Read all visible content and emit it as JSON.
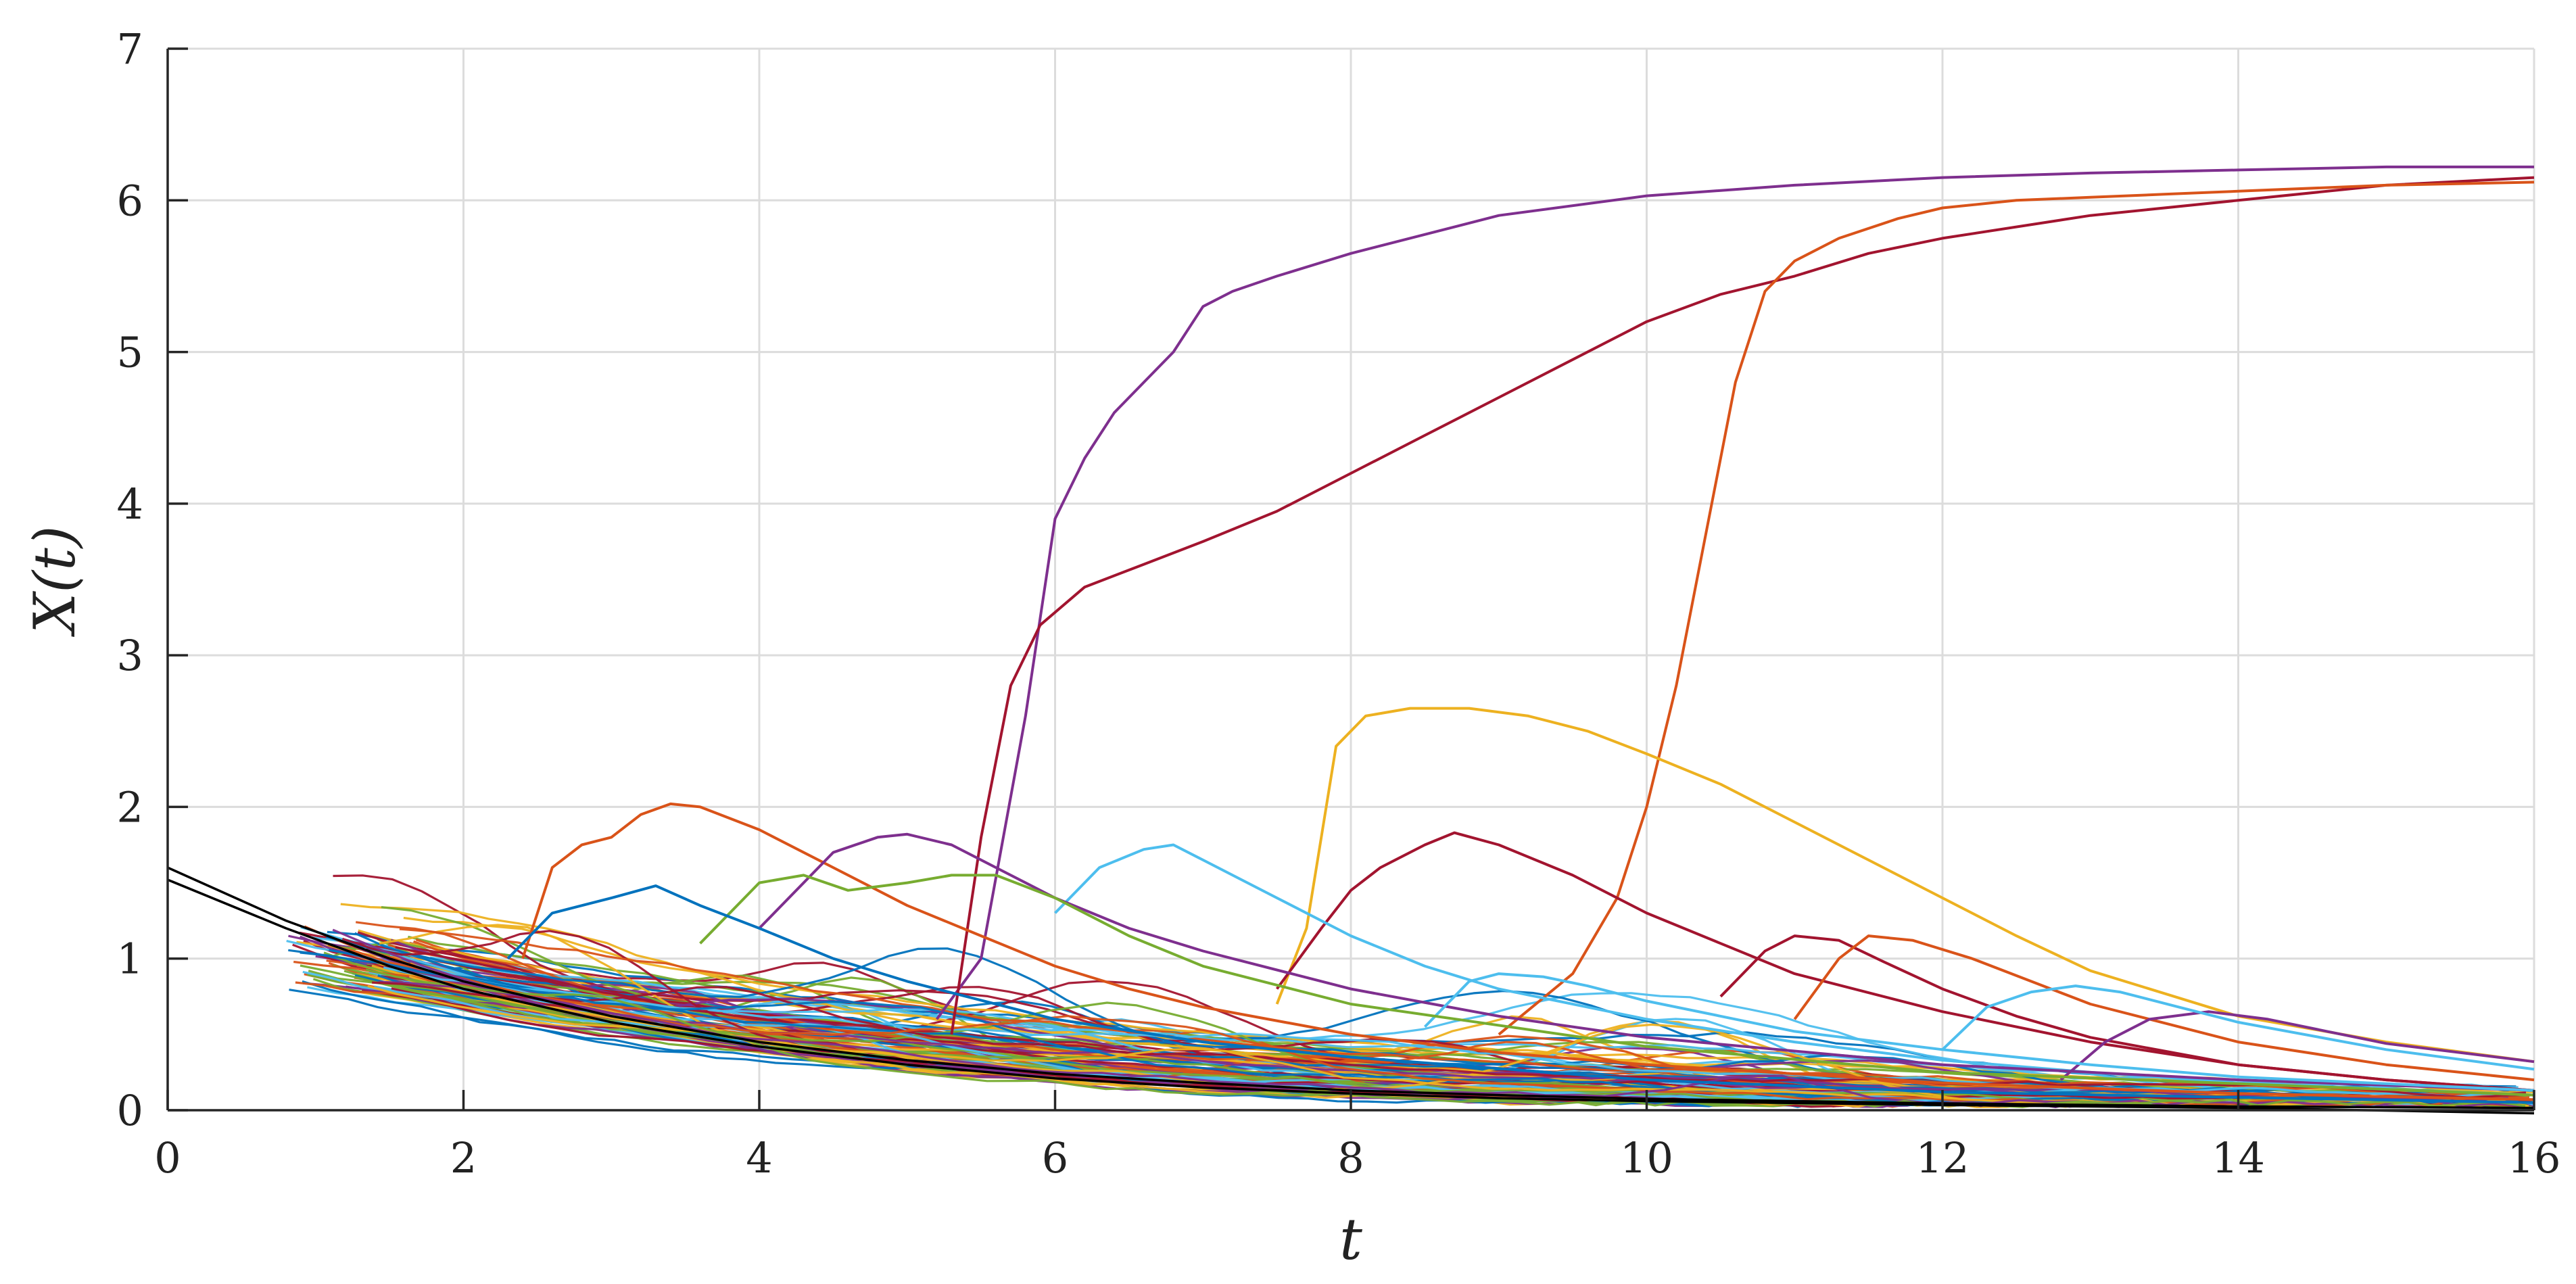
{
  "chart_data": {
    "type": "line",
    "title": "",
    "xlabel": "t",
    "ylabel": "X(t)",
    "xlim": [
      0,
      16
    ],
    "ylim": [
      0,
      7
    ],
    "xticks": [
      0,
      2,
      4,
      6,
      8,
      10,
      12,
      14,
      16
    ],
    "yticks": [
      0,
      1,
      2,
      3,
      4,
      5,
      6,
      7
    ],
    "grid": true,
    "legend": "none",
    "palette": [
      "#0072BD",
      "#D95319",
      "#EDB120",
      "#7E2F8E",
      "#77AC30",
      "#4DBEEE",
      "#A2142F"
    ],
    "envelope_color": "#000000",
    "envelope": [
      {
        "x": [
          0,
          0.8,
          1.5,
          2,
          3,
          4,
          5,
          6,
          7,
          8,
          9,
          10,
          12,
          14,
          16
        ],
        "y": [
          1.6,
          1.25,
          1.0,
          0.85,
          0.62,
          0.45,
          0.33,
          0.24,
          0.18,
          0.13,
          0.1,
          0.075,
          0.045,
          0.025,
          0.015
        ]
      },
      {
        "x": [
          0,
          0.8,
          1.5,
          2,
          3,
          4,
          5,
          6,
          7,
          8,
          9,
          10,
          12,
          14,
          16
        ],
        "y": [
          1.52,
          1.2,
          0.95,
          0.8,
          0.58,
          0.42,
          0.3,
          0.21,
          0.15,
          0.11,
          0.08,
          0.06,
          0.035,
          0.015,
          -0.02
        ]
      }
    ],
    "highlighted_series": [
      {
        "color": "#7E2F8E",
        "x": [
          5.2,
          5.5,
          5.8,
          6.0,
          6.2,
          6.4,
          6.6,
          6.8,
          7.0,
          7.2,
          7.5,
          8,
          9,
          10,
          11,
          12,
          13,
          14,
          15,
          16
        ],
        "y": [
          0.6,
          1.0,
          2.6,
          3.9,
          4.3,
          4.6,
          4.8,
          5.0,
          5.3,
          5.4,
          5.5,
          5.65,
          5.9,
          6.03,
          6.1,
          6.15,
          6.18,
          6.2,
          6.22,
          6.22
        ]
      },
      {
        "color": "#A2142F",
        "x": [
          5.3,
          5.5,
          5.7,
          5.9,
          6.2,
          6.6,
          7.0,
          7.5,
          8.0,
          8.5,
          9.0,
          9.5,
          10,
          10.5,
          11,
          11.5,
          12,
          13,
          14,
          15,
          16
        ],
        "y": [
          0.5,
          1.8,
          2.8,
          3.2,
          3.45,
          3.6,
          3.75,
          3.95,
          4.2,
          4.45,
          4.7,
          4.95,
          5.2,
          5.38,
          5.5,
          5.65,
          5.75,
          5.9,
          6.0,
          6.1,
          6.15
        ]
      },
      {
        "color": "#D95319",
        "x": [
          9.0,
          9.5,
          9.8,
          10.0,
          10.2,
          10.4,
          10.6,
          10.8,
          11.0,
          11.3,
          11.7,
          12,
          12.5,
          13,
          13.5,
          14,
          15,
          16
        ],
        "y": [
          0.5,
          0.9,
          1.4,
          2.0,
          2.8,
          3.8,
          4.8,
          5.4,
          5.6,
          5.75,
          5.88,
          5.95,
          6.0,
          6.02,
          6.04,
          6.06,
          6.1,
          6.12
        ]
      },
      {
        "color": "#EDB120",
        "x": [
          7.5,
          7.7,
          7.9,
          8.1,
          8.4,
          8.8,
          9.2,
          9.6,
          10,
          10.5,
          11,
          11.5,
          12,
          12.5,
          13,
          14,
          15,
          16
        ],
        "y": [
          0.7,
          1.2,
          2.4,
          2.6,
          2.65,
          2.65,
          2.6,
          2.5,
          2.35,
          2.15,
          1.9,
          1.65,
          1.4,
          1.15,
          0.92,
          0.62,
          0.45,
          0.32
        ]
      },
      {
        "color": "#A2142F",
        "x": [
          7.5,
          7.8,
          8.0,
          8.2,
          8.5,
          8.7,
          9.0,
          9.5,
          10,
          10.5,
          11,
          12,
          13,
          14,
          15,
          16
        ],
        "y": [
          0.8,
          1.2,
          1.45,
          1.6,
          1.75,
          1.83,
          1.75,
          1.55,
          1.3,
          1.1,
          0.9,
          0.65,
          0.45,
          0.3,
          0.2,
          0.13
        ]
      },
      {
        "color": "#D95319",
        "x": [
          2.4,
          2.6,
          2.8,
          3.0,
          3.2,
          3.4,
          3.6,
          4.0,
          4.5,
          5.0,
          5.5,
          6.0,
          6.5,
          7.0,
          8.0,
          9.0,
          10,
          12,
          14,
          16
        ],
        "y": [
          1.0,
          1.6,
          1.75,
          1.8,
          1.95,
          2.02,
          2.0,
          1.85,
          1.6,
          1.35,
          1.15,
          0.95,
          0.8,
          0.68,
          0.5,
          0.38,
          0.3,
          0.18,
          0.11,
          0.07
        ]
      },
      {
        "color": "#4DBEEE",
        "x": [
          6.0,
          6.3,
          6.6,
          6.8,
          7.0,
          7.5,
          8.0,
          8.5,
          9.0,
          10,
          11,
          12,
          13,
          14,
          16
        ],
        "y": [
          1.3,
          1.6,
          1.72,
          1.75,
          1.65,
          1.4,
          1.15,
          0.95,
          0.8,
          0.6,
          0.45,
          0.33,
          0.25,
          0.18,
          0.1
        ]
      },
      {
        "color": "#7E2F8E",
        "x": [
          4.0,
          4.5,
          4.8,
          5.0,
          5.3,
          5.6,
          6.0,
          6.5,
          7.0,
          8,
          9,
          10,
          12,
          14,
          16
        ],
        "y": [
          1.2,
          1.7,
          1.8,
          1.82,
          1.75,
          1.6,
          1.4,
          1.2,
          1.05,
          0.8,
          0.62,
          0.48,
          0.3,
          0.2,
          0.13
        ]
      },
      {
        "color": "#A2142F",
        "x": [
          10.5,
          10.8,
          11.0,
          11.3,
          11.6,
          12,
          12.5,
          13,
          14,
          15,
          16
        ],
        "y": [
          0.75,
          1.05,
          1.15,
          1.12,
          0.98,
          0.8,
          0.62,
          0.48,
          0.3,
          0.2,
          0.13
        ]
      },
      {
        "color": "#D95319",
        "x": [
          11.0,
          11.3,
          11.5,
          11.8,
          12.2,
          12.6,
          13,
          14,
          15,
          16
        ],
        "y": [
          0.6,
          1.0,
          1.15,
          1.12,
          1.0,
          0.85,
          0.7,
          0.45,
          0.3,
          0.2
        ]
      },
      {
        "color": "#7E2F8E",
        "x": [
          12.8,
          13.1,
          13.4,
          13.8,
          14.2,
          14.6,
          15,
          15.5,
          16
        ],
        "y": [
          0.2,
          0.45,
          0.6,
          0.65,
          0.6,
          0.52,
          0.44,
          0.38,
          0.32
        ]
      },
      {
        "color": "#4DBEEE",
        "x": [
          8.5,
          8.8,
          9.0,
          9.3,
          9.6,
          10,
          10.5,
          11,
          12,
          13,
          14,
          16
        ],
        "y": [
          0.55,
          0.85,
          0.9,
          0.88,
          0.82,
          0.72,
          0.62,
          0.52,
          0.4,
          0.3,
          0.22,
          0.13
        ]
      },
      {
        "color": "#77AC30",
        "x": [
          3.6,
          4.0,
          4.3,
          4.6,
          5.0,
          5.3,
          5.6,
          6.0,
          6.5,
          7.0,
          8,
          10,
          12,
          16
        ],
        "y": [
          1.1,
          1.5,
          1.55,
          1.45,
          1.5,
          1.55,
          1.55,
          1.4,
          1.15,
          0.95,
          0.7,
          0.42,
          0.25,
          0.1
        ]
      },
      {
        "color": "#0072BD",
        "x": [
          2.3,
          2.6,
          3.0,
          3.3,
          3.6,
          4.0,
          4.5,
          5.0,
          6.0,
          7.0,
          8,
          10,
          12,
          16
        ],
        "y": [
          1.0,
          1.3,
          1.4,
          1.48,
          1.35,
          1.2,
          1.0,
          0.85,
          0.6,
          0.45,
          0.35,
          0.2,
          0.12,
          0.05
        ]
      },
      {
        "color": "#4DBEEE",
        "x": [
          12.0,
          12.3,
          12.6,
          12.9,
          13.2,
          13.6,
          14,
          15,
          16
        ],
        "y": [
          0.4,
          0.68,
          0.78,
          0.82,
          0.78,
          0.68,
          0.58,
          0.4,
          0.27
        ]
      }
    ],
    "background_series": {
      "count": 110,
      "start_range": [
        0.8,
        1.8
      ],
      "start_level_range": [
        0.8,
        1.2
      ]
    }
  }
}
